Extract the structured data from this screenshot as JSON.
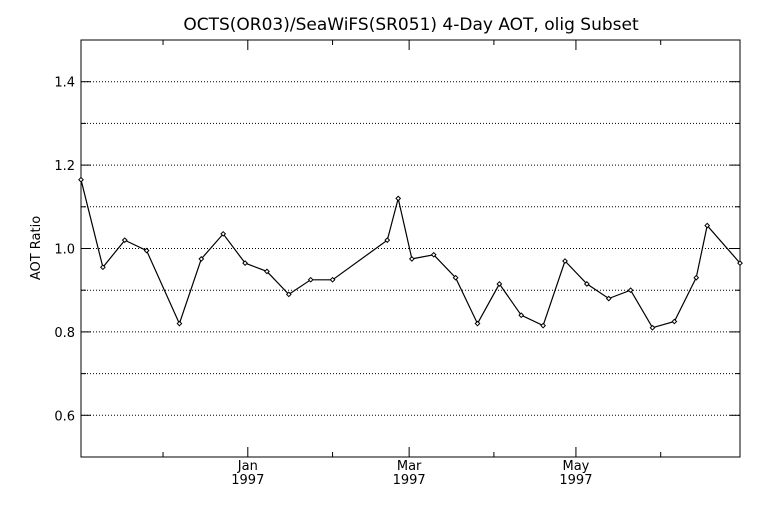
{
  "chart_data": {
    "type": "line",
    "title": "OCTS(OR03)/SeaWiFS(SR051) 4-Day AOT, olig Subset",
    "xlabel": "",
    "ylabel": "AOT Ratio",
    "x_axis": "date",
    "xlim": [
      "1996-11-01",
      "1997-06-30"
    ],
    "ylim": [
      0.5,
      1.5
    ],
    "y_ticks": [
      {
        "value": 0.6,
        "label": "0.6"
      },
      {
        "value": 0.8,
        "label": "0.8"
      },
      {
        "value": 1.0,
        "label": "1.0"
      },
      {
        "value": 1.2,
        "label": "1.2"
      },
      {
        "value": 1.4,
        "label": "1.4"
      }
    ],
    "y_minor_ticks": [
      0.5,
      0.7,
      0.9,
      1.1,
      1.3,
      1.5
    ],
    "x_ticks": [
      {
        "date": "1997-01-01",
        "month": "Jan",
        "year": "1997"
      },
      {
        "date": "1997-03-01",
        "month": "Mar",
        "year": "1997"
      },
      {
        "date": "1997-05-01",
        "month": "May",
        "year": "1997"
      }
    ],
    "x_minor_ticks": [
      "1996-12-01",
      "1997-02-01",
      "1997-04-01",
      "1997-06-01"
    ],
    "grid": "dotted-horizontal",
    "points": [
      {
        "x": "1996-11-01",
        "y": 1.165
      },
      {
        "x": "1996-11-09",
        "y": 0.955
      },
      {
        "x": "1996-11-17",
        "y": 1.02
      },
      {
        "x": "1996-11-25",
        "y": 0.995
      },
      {
        "x": "1996-12-07",
        "y": 0.82
      },
      {
        "x": "1996-12-15",
        "y": 0.975
      },
      {
        "x": "1996-12-23",
        "y": 1.035
      },
      {
        "x": "1996-12-31",
        "y": 0.965
      },
      {
        "x": "1997-01-08",
        "y": 0.945
      },
      {
        "x": "1997-01-16",
        "y": 0.89
      },
      {
        "x": "1997-01-24",
        "y": 0.925
      },
      {
        "x": "1997-02-01",
        "y": 0.925
      },
      {
        "x": "1997-02-21",
        "y": 1.02
      },
      {
        "x": "1997-02-25",
        "y": 1.12
      },
      {
        "x": "1997-03-02",
        "y": 0.975
      },
      {
        "x": "1997-03-10",
        "y": 0.985
      },
      {
        "x": "1997-03-18",
        "y": 0.93
      },
      {
        "x": "1997-03-26",
        "y": 0.82
      },
      {
        "x": "1997-04-03",
        "y": 0.915
      },
      {
        "x": "1997-04-11",
        "y": 0.84
      },
      {
        "x": "1997-04-19",
        "y": 0.815
      },
      {
        "x": "1997-04-27",
        "y": 0.97
      },
      {
        "x": "1997-05-05",
        "y": 0.915
      },
      {
        "x": "1997-05-13",
        "y": 0.88
      },
      {
        "x": "1997-05-21",
        "y": 0.9
      },
      {
        "x": "1997-05-29",
        "y": 0.81
      },
      {
        "x": "1997-06-06",
        "y": 0.825
      },
      {
        "x": "1997-06-14",
        "y": 0.93
      },
      {
        "x": "1997-06-18",
        "y": 1.055
      },
      {
        "x": "1997-06-30",
        "y": 0.965
      }
    ]
  }
}
